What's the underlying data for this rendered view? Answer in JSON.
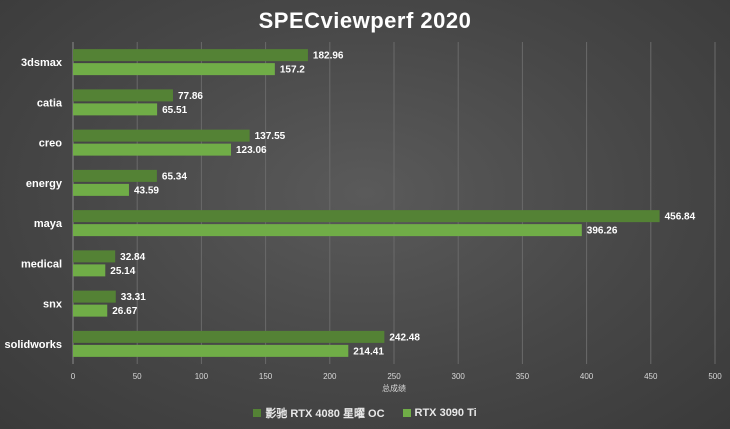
{
  "chart_data": {
    "type": "bar",
    "orientation": "horizontal",
    "title": "SPECviewperf 2020",
    "xlabel": "总成绩",
    "ylabel": "",
    "xlim": [
      0,
      500
    ],
    "xticks": [
      0,
      50,
      100,
      150,
      200,
      250,
      300,
      350,
      400,
      450,
      500
    ],
    "grid": "vertical",
    "legend_position": "bottom",
    "categories": [
      "3dsmax",
      "catia",
      "creo",
      "energy",
      "maya",
      "medical",
      "snx",
      "solidworks"
    ],
    "series": [
      {
        "name": "影驰 RTX 4080 星曜 OC",
        "color": "#548235",
        "values": [
          182.96,
          77.86,
          137.55,
          65.34,
          456.84,
          32.84,
          33.31,
          242.48
        ],
        "labels": [
          "182.96",
          "77.86",
          "137.55",
          "65.34",
          "456.84",
          "32.84",
          "33.31",
          "242.48"
        ]
      },
      {
        "name": "RTX 3090 Ti",
        "color": "#70ad47",
        "values": [
          157.2,
          65.51,
          123.06,
          43.59,
          396.26,
          25.14,
          26.67,
          214.41
        ],
        "labels": [
          "157.2",
          "65.51",
          "123.06",
          "43.59",
          "396.26",
          "25.14",
          "26.67",
          "214.41"
        ]
      }
    ]
  }
}
